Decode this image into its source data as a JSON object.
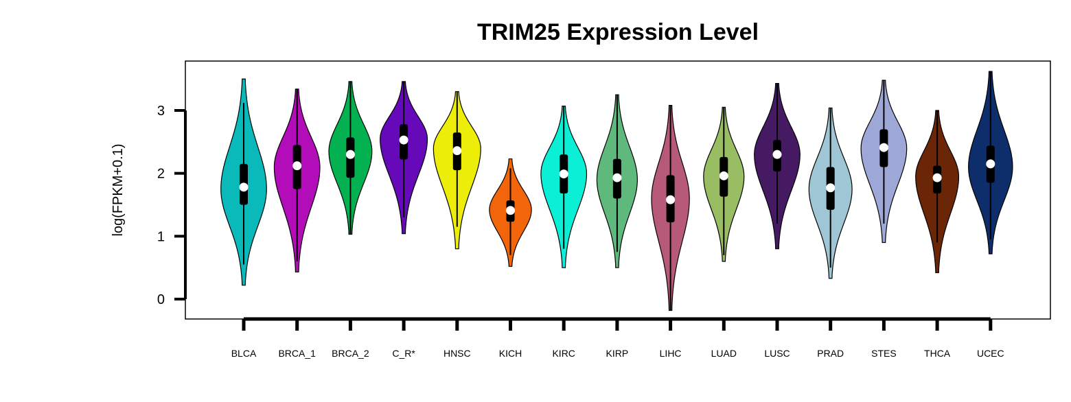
{
  "chart_data": {
    "type": "violin",
    "title": "TRIM25 Expression Level",
    "xlabel": "",
    "ylabel": "log(FPKM+0.1)",
    "ylim": [
      -0.3,
      3.7
    ],
    "yticks": [
      0,
      1,
      2,
      3
    ],
    "grid": false,
    "legend": "none",
    "categories": [
      "BLCA",
      "BRCA_1",
      "BRCA_2",
      "C_R*",
      "HNSC",
      "KICH",
      "KIRC",
      "KIRP",
      "LIHC",
      "LUAD",
      "LUSC",
      "PRAD",
      "STES",
      "THCA",
      "UCEC"
    ],
    "colors": [
      "#0ab9b9",
      "#b20db8",
      "#03b150",
      "#6609b8",
      "#eded0a",
      "#f3650a",
      "#0aefd5",
      "#5fb97c",
      "#b75a79",
      "#98bd62",
      "#451a63",
      "#9ec6d5",
      "#9ea8d6",
      "#6b2608",
      "#0d2e6a"
    ],
    "violins": [
      {
        "name": "BLCA",
        "min": 0.22,
        "max": 3.5,
        "q1": 1.5,
        "median": 1.78,
        "q3": 2.15,
        "whisker_low": 0.55,
        "whisker_high": 3.12,
        "mode": 1.75,
        "width": 0.85
      },
      {
        "name": "BRCA_1",
        "min": 0.43,
        "max": 3.34,
        "q1": 1.75,
        "median": 2.12,
        "q3": 2.45,
        "whisker_low": 0.6,
        "whisker_high": 3.34,
        "mode": 2.1,
        "width": 0.85
      },
      {
        "name": "BRCA_2",
        "min": 1.03,
        "max": 3.46,
        "q1": 1.93,
        "median": 2.3,
        "q3": 2.57,
        "whisker_low": 1.03,
        "whisker_high": 3.46,
        "mode": 2.35,
        "width": 0.8
      },
      {
        "name": "C_R*",
        "min": 1.04,
        "max": 3.46,
        "q1": 2.22,
        "median": 2.53,
        "q3": 2.78,
        "whisker_low": 1.3,
        "whisker_high": 3.46,
        "mode": 2.55,
        "width": 0.88
      },
      {
        "name": "HNSC",
        "min": 0.8,
        "max": 3.3,
        "q1": 2.05,
        "median": 2.36,
        "q3": 2.65,
        "whisker_low": 1.15,
        "whisker_high": 3.3,
        "mode": 2.4,
        "width": 0.88
      },
      {
        "name": "KICH",
        "min": 0.52,
        "max": 2.23,
        "q1": 1.23,
        "median": 1.41,
        "q3": 1.57,
        "whisker_low": 0.7,
        "whisker_high": 2.08,
        "mode": 1.42,
        "width": 0.78
      },
      {
        "name": "KIRC",
        "min": 0.5,
        "max": 3.07,
        "q1": 1.68,
        "median": 1.99,
        "q3": 2.3,
        "whisker_low": 0.8,
        "whisker_high": 3.07,
        "mode": 2.0,
        "width": 0.85
      },
      {
        "name": "KIRP",
        "min": 0.5,
        "max": 3.25,
        "q1": 1.6,
        "median": 1.93,
        "q3": 2.23,
        "whisker_low": 0.75,
        "whisker_high": 3.25,
        "mode": 1.9,
        "width": 0.75
      },
      {
        "name": "LIHC",
        "min": -0.18,
        "max": 3.08,
        "q1": 1.22,
        "median": 1.58,
        "q3": 1.97,
        "whisker_low": -0.18,
        "whisker_high": 3.08,
        "mode": 1.6,
        "width": 0.7
      },
      {
        "name": "LUAD",
        "min": 0.6,
        "max": 3.05,
        "q1": 1.63,
        "median": 1.96,
        "q3": 2.26,
        "whisker_low": 0.7,
        "whisker_high": 3.05,
        "mode": 1.95,
        "width": 0.75
      },
      {
        "name": "LUSC",
        "min": 0.8,
        "max": 3.43,
        "q1": 2.03,
        "median": 2.3,
        "q3": 2.53,
        "whisker_low": 1.2,
        "whisker_high": 3.43,
        "mode": 2.3,
        "width": 0.85
      },
      {
        "name": "PRAD",
        "min": 0.33,
        "max": 3.04,
        "q1": 1.42,
        "median": 1.77,
        "q3": 2.1,
        "whisker_low": 0.5,
        "whisker_high": 3.04,
        "mode": 1.75,
        "width": 0.8
      },
      {
        "name": "STES",
        "min": 0.9,
        "max": 3.48,
        "q1": 2.1,
        "median": 2.41,
        "q3": 2.7,
        "whisker_low": 1.2,
        "whisker_high": 3.48,
        "mode": 2.4,
        "width": 0.85
      },
      {
        "name": "THCA",
        "min": 0.42,
        "max": 3.0,
        "q1": 1.68,
        "median": 1.93,
        "q3": 2.12,
        "whisker_low": 0.9,
        "whisker_high": 3.0,
        "mode": 1.95,
        "width": 0.8
      },
      {
        "name": "UCEC",
        "min": 0.72,
        "max": 3.62,
        "q1": 1.85,
        "median": 2.15,
        "q3": 2.44,
        "whisker_low": 0.95,
        "whisker_high": 3.62,
        "mode": 2.1,
        "width": 0.82
      }
    ]
  }
}
